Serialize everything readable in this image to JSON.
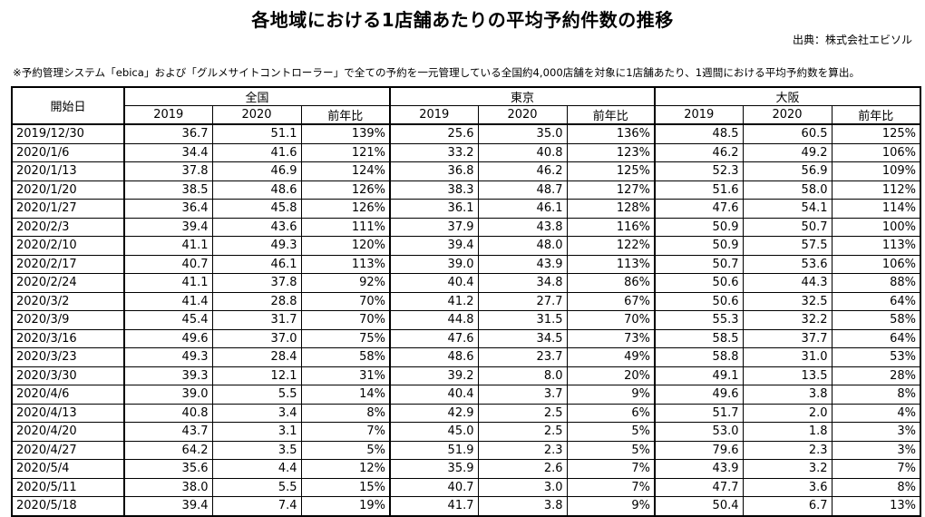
{
  "title": "各地域における1店舗あたりの平均予約件数の推移",
  "source": "出典：株式会社エビソル",
  "note": "※予約管理システム「ebica」および「グルメサイトコントローラー」で全ての予約を一元管理している全国約4,000店舗を対象に1店舗あたり、1週間における平均予約数を算出。",
  "headers": {
    "start_date": "開始日",
    "regions": [
      "全国",
      "東京",
      "大阪"
    ],
    "sub": [
      "2019",
      "2020",
      "前年比"
    ]
  },
  "rows": [
    [
      "2019/12/30",
      "36.7",
      "51.1",
      "139%",
      "25.6",
      "35.0",
      "136%",
      "48.5",
      "60.5",
      "125%"
    ],
    [
      "2020/1/6",
      "34.4",
      "41.6",
      "121%",
      "33.2",
      "40.8",
      "123%",
      "46.2",
      "49.2",
      "106%"
    ],
    [
      "2020/1/13",
      "37.8",
      "46.9",
      "124%",
      "36.8",
      "46.2",
      "125%",
      "52.3",
      "56.9",
      "109%"
    ],
    [
      "2020/1/20",
      "38.5",
      "48.6",
      "126%",
      "38.3",
      "48.7",
      "127%",
      "51.6",
      "58.0",
      "112%"
    ],
    [
      "2020/1/27",
      "36.4",
      "45.8",
      "126%",
      "36.1",
      "46.1",
      "128%",
      "47.6",
      "54.1",
      "114%"
    ],
    [
      "2020/2/3",
      "39.4",
      "43.6",
      "111%",
      "37.9",
      "43.8",
      "116%",
      "50.9",
      "50.7",
      "100%"
    ],
    [
      "2020/2/10",
      "41.1",
      "49.3",
      "120%",
      "39.4",
      "48.0",
      "122%",
      "50.9",
      "57.5",
      "113%"
    ],
    [
      "2020/2/17",
      "40.7",
      "46.1",
      "113%",
      "39.0",
      "43.9",
      "113%",
      "50.7",
      "53.6",
      "106%"
    ],
    [
      "2020/2/24",
      "41.1",
      "37.8",
      "92%",
      "40.4",
      "34.8",
      "86%",
      "50.6",
      "44.3",
      "88%"
    ],
    [
      "2020/3/2",
      "41.4",
      "28.8",
      "70%",
      "41.2",
      "27.7",
      "67%",
      "50.6",
      "32.5",
      "64%"
    ],
    [
      "2020/3/9",
      "45.4",
      "31.7",
      "70%",
      "44.8",
      "31.5",
      "70%",
      "55.3",
      "32.2",
      "58%"
    ],
    [
      "2020/3/16",
      "49.6",
      "37.0",
      "75%",
      "47.6",
      "34.5",
      "73%",
      "58.5",
      "37.7",
      "64%"
    ],
    [
      "2020/3/23",
      "49.3",
      "28.4",
      "58%",
      "48.6",
      "23.7",
      "49%",
      "58.8",
      "31.0",
      "53%"
    ],
    [
      "2020/3/30",
      "39.3",
      "12.1",
      "31%",
      "39.2",
      "8.0",
      "20%",
      "49.1",
      "13.5",
      "28%"
    ],
    [
      "2020/4/6",
      "39.0",
      "5.5",
      "14%",
      "40.4",
      "3.7",
      "9%",
      "49.6",
      "3.8",
      "8%"
    ],
    [
      "2020/4/13",
      "40.8",
      "3.4",
      "8%",
      "42.9",
      "2.5",
      "6%",
      "51.7",
      "2.0",
      "4%"
    ],
    [
      "2020/4/20",
      "43.7",
      "3.1",
      "7%",
      "45.0",
      "2.5",
      "5%",
      "53.0",
      "1.8",
      "3%"
    ],
    [
      "2020/4/27",
      "64.2",
      "3.5",
      "5%",
      "51.9",
      "2.3",
      "5%",
      "79.6",
      "2.3",
      "3%"
    ],
    [
      "2020/5/4",
      "35.6",
      "4.4",
      "12%",
      "35.9",
      "2.6",
      "7%",
      "43.9",
      "3.2",
      "7%"
    ],
    [
      "2020/5/11",
      "38.0",
      "5.5",
      "15%",
      "40.7",
      "3.0",
      "7%",
      "47.7",
      "3.6",
      "8%"
    ],
    [
      "2020/5/18",
      "39.4",
      "7.4",
      "19%",
      "41.7",
      "3.8",
      "9%",
      "50.4",
      "6.7",
      "13%"
    ]
  ]
}
